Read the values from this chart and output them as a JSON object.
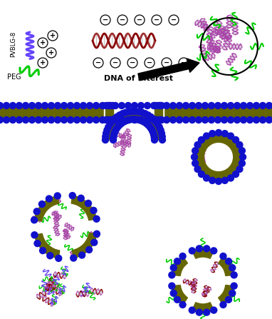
{
  "background_color": "#ffffff",
  "peg_color": "#00cc00",
  "pvblg_color": "#6644ff",
  "dna_color1": "#880000",
  "dna_color2": "#aa44aa",
  "bead_color": "#1111cc",
  "olive_color": "#666600",
  "condensed_color": "#aa44aa",
  "figsize": [
    3.82,
    4.47
  ],
  "dpi": 100,
  "text_dna": "DNA of Interest",
  "text_peg": "PEG",
  "text_pvblg": "PVBLG-8"
}
